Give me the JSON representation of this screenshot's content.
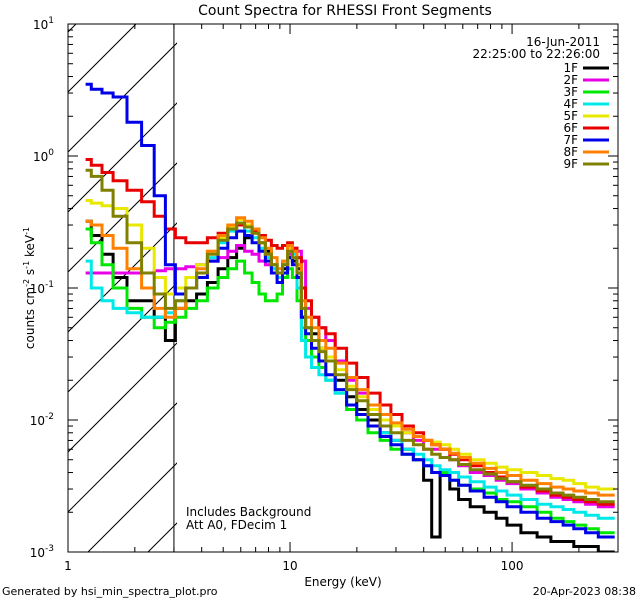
{
  "chart_data": {
    "type": "line",
    "title": "Count Spectra for RHESSI Front Segments",
    "xlabel": "Energy (keV)",
    "ylabel_parts": [
      "counts cm",
      "-2",
      " s",
      "-1",
      " keV",
      "-1"
    ],
    "xscale": "log",
    "yscale": "log",
    "xlim": [
      1,
      300
    ],
    "ylim": [
      0.001,
      10
    ],
    "x_ticks": [
      {
        "value": 1,
        "label": "1"
      },
      {
        "value": 10,
        "label": "10"
      },
      {
        "value": 100,
        "label": "100"
      }
    ],
    "y_ticks": [
      {
        "value": 10,
        "base": "10",
        "exp": "1"
      },
      {
        "value": 1,
        "base": "10",
        "exp": "0"
      },
      {
        "value": 0.1,
        "base": "10",
        "exp": "-1"
      },
      {
        "value": 0.01,
        "base": "10",
        "exp": "-2"
      },
      {
        "value": 0.001,
        "base": "10",
        "exp": "-3"
      }
    ],
    "shaded_region": {
      "x_from": 1,
      "x_to": 3,
      "style": "diagonal hatch"
    },
    "date": "16-Jun-2011",
    "time_range": "22:25:00 to 22:26:00",
    "annotations": [
      "Includes Background",
      "Att A0, FDecim 1"
    ],
    "footer_left": "Generated by hsi_min_spectra_plot.pro",
    "footer_right": "20-Apr-2023 08:38",
    "legend_position": "top-right",
    "series": [
      {
        "name": "1F",
        "color": "#000000",
        "x": [
          1.2,
          1.35,
          1.5,
          1.7,
          2.0,
          2.3,
          2.6,
          2.9,
          3.2,
          3.6,
          4.0,
          4.5,
          5.0,
          5.5,
          6.0,
          6.5,
          7.0,
          7.5,
          8.0,
          8.5,
          9.0,
          9.5,
          10.0,
          10.5,
          11.0,
          11.5,
          12.0,
          13.0,
          14.0,
          15.0,
          17.0,
          19.0,
          21.0,
          24.0,
          27.0,
          30.0,
          34.0,
          38.0,
          42.0,
          45.0,
          50.0,
          55.0,
          60.0,
          70.0,
          80.0,
          90.0,
          100.0,
          120.0,
          140.0,
          160.0,
          180.0,
          200.0,
          230.0,
          260.0,
          290.0
        ],
        "values": [
          0.32,
          0.25,
          0.18,
          0.12,
          0.08,
          0.08,
          0.06,
          0.04,
          0.07,
          0.08,
          0.09,
          0.11,
          0.14,
          0.17,
          0.2,
          0.24,
          0.27,
          0.22,
          0.19,
          0.15,
          0.12,
          0.14,
          0.17,
          0.16,
          0.14,
          0.06,
          0.05,
          0.045,
          0.035,
          0.03,
          0.02,
          0.015,
          0.012,
          0.01,
          0.008,
          0.007,
          0.006,
          0.005,
          0.0035,
          0.0013,
          0.004,
          0.003,
          0.0025,
          0.0022,
          0.002,
          0.0018,
          0.0016,
          0.0014,
          0.0013,
          0.0012,
          0.0012,
          0.0011,
          0.0011,
          0.001,
          0.001
        ]
      },
      {
        "name": "2F",
        "color": "#e800e8",
        "x": [
          1.2,
          1.35,
          1.5,
          1.7,
          2.0,
          2.3,
          2.6,
          2.9,
          3.2,
          3.6,
          4.0,
          4.5,
          5.0,
          5.5,
          6.0,
          6.5,
          7.0,
          7.5,
          8.0,
          8.5,
          9.0,
          9.5,
          10.0,
          10.5,
          11.0,
          11.5,
          12.0,
          13.0,
          14.0,
          15.0,
          17.0,
          19.0,
          21.0,
          24.0,
          27.0,
          30.0,
          34.0,
          38.0,
          42.0,
          45.0,
          50.0,
          55.0,
          60.0,
          70.0,
          80.0,
          90.0,
          100.0,
          120.0,
          140.0,
          160.0,
          180.0,
          200.0,
          230.0,
          260.0,
          290.0
        ],
        "values": [
          0.13,
          0.13,
          0.13,
          0.13,
          0.13,
          0.13,
          0.135,
          0.14,
          0.14,
          0.145,
          0.15,
          0.16,
          0.17,
          0.19,
          0.21,
          0.19,
          0.18,
          0.16,
          0.15,
          0.14,
          0.13,
          0.15,
          0.18,
          0.2,
          0.19,
          0.16,
          0.07,
          0.06,
          0.05,
          0.04,
          0.028,
          0.02,
          0.016,
          0.012,
          0.01,
          0.009,
          0.008,
          0.007,
          0.006,
          0.006,
          0.006,
          0.005,
          0.0045,
          0.004,
          0.0038,
          0.0035,
          0.0033,
          0.003,
          0.0028,
          0.0026,
          0.0025,
          0.0024,
          0.0023,
          0.0022,
          0.0022
        ]
      },
      {
        "name": "3F",
        "color": "#00e800",
        "x": [
          1.2,
          1.35,
          1.5,
          1.7,
          2.0,
          2.3,
          2.6,
          2.9,
          3.2,
          3.6,
          4.0,
          4.5,
          5.0,
          5.5,
          6.0,
          6.5,
          7.0,
          7.5,
          8.0,
          8.5,
          9.0,
          9.5,
          10.0,
          10.5,
          11.0,
          11.5,
          12.0,
          13.0,
          14.0,
          15.0,
          17.0,
          19.0,
          21.0,
          24.0,
          27.0,
          30.0,
          34.0,
          38.0,
          42.0,
          45.0,
          50.0,
          55.0,
          60.0,
          70.0,
          80.0,
          90.0,
          100.0,
          120.0,
          140.0,
          160.0,
          180.0,
          200.0,
          230.0,
          260.0,
          290.0
        ],
        "values": [
          0.28,
          0.22,
          0.15,
          0.1,
          0.07,
          0.06,
          0.05,
          0.055,
          0.06,
          0.07,
          0.08,
          0.1,
          0.12,
          0.14,
          0.16,
          0.13,
          0.11,
          0.09,
          0.08,
          0.08,
          0.09,
          0.12,
          0.14,
          0.12,
          0.08,
          0.05,
          0.04,
          0.03,
          0.025,
          0.02,
          0.016,
          0.012,
          0.01,
          0.008,
          0.007,
          0.006,
          0.0055,
          0.005,
          0.0045,
          0.004,
          0.004,
          0.0035,
          0.0032,
          0.003,
          0.0028,
          0.0025,
          0.0024,
          0.0022,
          0.002,
          0.0018,
          0.0017,
          0.0016,
          0.0015,
          0.0014,
          0.0014
        ]
      },
      {
        "name": "4F",
        "color": "#00e8e8",
        "x": [
          1.2,
          1.35,
          1.5,
          1.7,
          2.0,
          2.3,
          2.6,
          2.9,
          3.2,
          3.6,
          4.0,
          4.5,
          5.0,
          5.5,
          6.0,
          6.5,
          7.0,
          7.5,
          8.0,
          8.5,
          9.0,
          9.5,
          10.0,
          10.5,
          11.0,
          11.5,
          12.0,
          13.0,
          14.0,
          15.0,
          17.0,
          19.0,
          21.0,
          24.0,
          27.0,
          30.0,
          34.0,
          38.0,
          42.0,
          45.0,
          50.0,
          55.0,
          60.0,
          70.0,
          80.0,
          90.0,
          100.0,
          120.0,
          140.0,
          160.0,
          180.0,
          200.0,
          230.0,
          260.0,
          290.0
        ],
        "values": [
          0.16,
          0.1,
          0.08,
          0.07,
          0.065,
          0.06,
          0.06,
          0.065,
          0.08,
          0.1,
          0.13,
          0.17,
          0.22,
          0.27,
          0.3,
          0.27,
          0.24,
          0.2,
          0.17,
          0.14,
          0.12,
          0.15,
          0.2,
          0.18,
          0.1,
          0.04,
          0.03,
          0.025,
          0.022,
          0.02,
          0.016,
          0.013,
          0.011,
          0.009,
          0.008,
          0.007,
          0.006,
          0.0055,
          0.005,
          0.0045,
          0.0042,
          0.004,
          0.0037,
          0.0034,
          0.0031,
          0.0029,
          0.0027,
          0.0025,
          0.0023,
          0.0022,
          0.0021,
          0.002,
          0.0019,
          0.0018,
          0.0018
        ]
      },
      {
        "name": "5F",
        "color": "#e8e800",
        "x": [
          1.2,
          1.35,
          1.5,
          1.7,
          2.0,
          2.3,
          2.6,
          2.9,
          3.2,
          3.6,
          4.0,
          4.5,
          5.0,
          5.5,
          6.0,
          6.5,
          7.0,
          7.5,
          8.0,
          8.5,
          9.0,
          9.5,
          10.0,
          10.5,
          11.0,
          11.5,
          12.0,
          13.0,
          14.0,
          15.0,
          17.0,
          19.0,
          21.0,
          24.0,
          27.0,
          30.0,
          34.0,
          38.0,
          42.0,
          45.0,
          50.0,
          55.0,
          60.0,
          70.0,
          80.0,
          90.0,
          100.0,
          120.0,
          140.0,
          160.0,
          180.0,
          200.0,
          230.0,
          260.0,
          290.0
        ],
        "values": [
          0.46,
          0.44,
          0.42,
          0.4,
          0.3,
          0.2,
          0.12,
          0.09,
          0.1,
          0.12,
          0.15,
          0.19,
          0.24,
          0.29,
          0.33,
          0.3,
          0.26,
          0.22,
          0.18,
          0.15,
          0.13,
          0.16,
          0.2,
          0.19,
          0.15,
          0.07,
          0.05,
          0.04,
          0.035,
          0.03,
          0.024,
          0.018,
          0.015,
          0.012,
          0.01,
          0.009,
          0.008,
          0.0075,
          0.007,
          0.0068,
          0.0065,
          0.006,
          0.0055,
          0.005,
          0.0047,
          0.0044,
          0.0042,
          0.004,
          0.0038,
          0.0036,
          0.0035,
          0.0033,
          0.0031,
          0.003,
          0.003
        ]
      },
      {
        "name": "6F",
        "color": "#e80000",
        "x": [
          1.2,
          1.35,
          1.5,
          1.7,
          2.0,
          2.3,
          2.6,
          2.9,
          3.2,
          3.6,
          4.0,
          4.5,
          5.0,
          5.5,
          6.0,
          6.5,
          7.0,
          7.5,
          8.0,
          8.5,
          9.0,
          9.5,
          10.0,
          10.5,
          11.0,
          11.5,
          12.0,
          13.0,
          14.0,
          15.0,
          17.0,
          19.0,
          21.0,
          24.0,
          27.0,
          30.0,
          34.0,
          38.0,
          42.0,
          45.0,
          50.0,
          55.0,
          60.0,
          70.0,
          80.0,
          90.0,
          100.0,
          120.0,
          140.0,
          160.0,
          180.0,
          200.0,
          230.0,
          260.0,
          290.0
        ],
        "values": [
          0.94,
          0.85,
          0.75,
          0.65,
          0.55,
          0.45,
          0.35,
          0.28,
          0.24,
          0.22,
          0.22,
          0.24,
          0.26,
          0.28,
          0.3,
          0.29,
          0.27,
          0.25,
          0.23,
          0.21,
          0.2,
          0.21,
          0.22,
          0.2,
          0.17,
          0.1,
          0.08,
          0.06,
          0.05,
          0.045,
          0.035,
          0.027,
          0.021,
          0.016,
          0.013,
          0.011,
          0.009,
          0.008,
          0.007,
          0.0065,
          0.006,
          0.0055,
          0.005,
          0.0045,
          0.004,
          0.0037,
          0.0034,
          0.0031,
          0.0029,
          0.0027,
          0.0026,
          0.0025,
          0.0024,
          0.0023,
          0.0023
        ]
      },
      {
        "name": "7F",
        "color": "#0000e8",
        "x": [
          1.2,
          1.35,
          1.5,
          1.7,
          2.0,
          2.3,
          2.6,
          2.9,
          3.2,
          3.6,
          4.0,
          4.5,
          5.0,
          5.5,
          6.0,
          6.5,
          7.0,
          7.5,
          8.0,
          8.5,
          9.0,
          9.5,
          10.0,
          10.5,
          11.0,
          11.5,
          12.0,
          13.0,
          14.0,
          15.0,
          17.0,
          19.0,
          21.0,
          24.0,
          27.0,
          30.0,
          34.0,
          38.0,
          42.0,
          45.0,
          50.0,
          55.0,
          60.0,
          70.0,
          80.0,
          90.0,
          100.0,
          120.0,
          140.0,
          160.0,
          180.0,
          200.0,
          230.0,
          260.0,
          290.0
        ],
        "values": [
          3.5,
          3.2,
          3.0,
          2.8,
          1.8,
          1.2,
          0.5,
          0.15,
          0.09,
          0.1,
          0.12,
          0.16,
          0.2,
          0.24,
          0.27,
          0.25,
          0.22,
          0.19,
          0.16,
          0.13,
          0.11,
          0.13,
          0.17,
          0.15,
          0.12,
          0.06,
          0.045,
          0.035,
          0.028,
          0.022,
          0.017,
          0.013,
          0.011,
          0.009,
          0.0075,
          0.0065,
          0.0055,
          0.005,
          0.0045,
          0.004,
          0.0038,
          0.0035,
          0.0032,
          0.0029,
          0.0026,
          0.0024,
          0.0022,
          0.002,
          0.0018,
          0.0017,
          0.0016,
          0.0015,
          0.0014,
          0.0013,
          0.0013
        ]
      },
      {
        "name": "8F",
        "color": "#ff8000",
        "x": [
          1.2,
          1.35,
          1.5,
          1.7,
          2.0,
          2.3,
          2.6,
          2.9,
          3.2,
          3.6,
          4.0,
          4.5,
          5.0,
          5.5,
          6.0,
          6.5,
          7.0,
          7.5,
          8.0,
          8.5,
          9.0,
          9.5,
          10.0,
          10.5,
          11.0,
          11.5,
          12.0,
          13.0,
          14.0,
          15.0,
          17.0,
          19.0,
          21.0,
          24.0,
          27.0,
          30.0,
          34.0,
          38.0,
          42.0,
          45.0,
          50.0,
          55.0,
          60.0,
          70.0,
          80.0,
          90.0,
          100.0,
          120.0,
          140.0,
          160.0,
          180.0,
          200.0,
          230.0,
          260.0,
          290.0
        ],
        "values": [
          0.32,
          0.3,
          0.25,
          0.2,
          0.14,
          0.1,
          0.07,
          0.06,
          0.07,
          0.1,
          0.14,
          0.19,
          0.25,
          0.3,
          0.34,
          0.32,
          0.28,
          0.24,
          0.2,
          0.17,
          0.14,
          0.16,
          0.21,
          0.19,
          0.15,
          0.08,
          0.06,
          0.05,
          0.04,
          0.035,
          0.027,
          0.021,
          0.017,
          0.013,
          0.011,
          0.0095,
          0.0085,
          0.0075,
          0.007,
          0.0065,
          0.006,
          0.0056,
          0.0052,
          0.0047,
          0.0043,
          0.004,
          0.0038,
          0.0035,
          0.0033,
          0.0031,
          0.003,
          0.0029,
          0.0028,
          0.0027,
          0.0027
        ]
      },
      {
        "name": "9F",
        "color": "#808000",
        "x": [
          1.2,
          1.35,
          1.5,
          1.7,
          2.0,
          2.3,
          2.6,
          2.9,
          3.2,
          3.6,
          4.0,
          4.5,
          5.0,
          5.5,
          6.0,
          6.5,
          7.0,
          7.5,
          8.0,
          8.5,
          9.0,
          9.5,
          10.0,
          10.5,
          11.0,
          11.5,
          12.0,
          13.0,
          14.0,
          15.0,
          17.0,
          19.0,
          21.0,
          24.0,
          27.0,
          30.0,
          34.0,
          38.0,
          42.0,
          45.0,
          50.0,
          55.0,
          60.0,
          70.0,
          80.0,
          90.0,
          100.0,
          120.0,
          140.0,
          160.0,
          180.0,
          200.0,
          230.0,
          260.0,
          290.0
        ],
        "values": [
          0.78,
          0.7,
          0.55,
          0.35,
          0.22,
          0.13,
          0.09,
          0.07,
          0.08,
          0.1,
          0.13,
          0.18,
          0.23,
          0.28,
          0.31,
          0.29,
          0.26,
          0.22,
          0.18,
          0.15,
          0.13,
          0.15,
          0.19,
          0.17,
          0.13,
          0.07,
          0.05,
          0.04,
          0.033,
          0.028,
          0.022,
          0.017,
          0.014,
          0.011,
          0.009,
          0.008,
          0.007,
          0.0065,
          0.006,
          0.0055,
          0.0052,
          0.005,
          0.0046,
          0.0042,
          0.0039,
          0.0036,
          0.0034,
          0.0032,
          0.003,
          0.0028,
          0.0027,
          0.0026,
          0.0025,
          0.0024,
          0.0024
        ]
      }
    ]
  }
}
